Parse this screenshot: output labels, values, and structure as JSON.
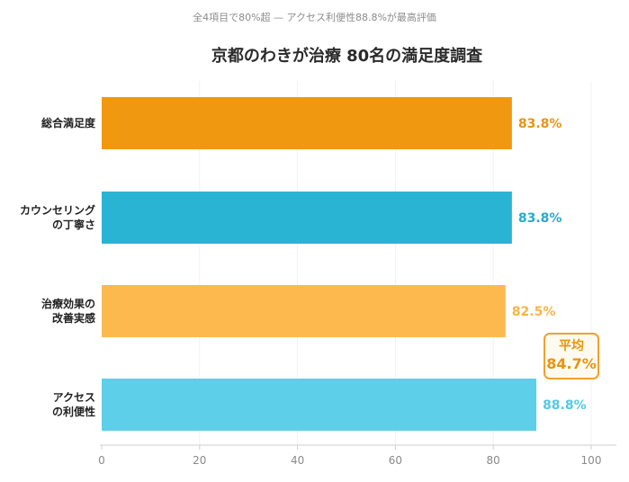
{
  "chart_data": {
    "type": "bar",
    "orientation": "horizontal",
    "subtitle": "全4項目で80%超 — アクセス利便性88.8%が最高評価",
    "title": "京都のわきが治療 80名の満足度調査",
    "categories": [
      [
        "総合満足度"
      ],
      [
        "カウンセリング",
        "の丁寧さ"
      ],
      [
        "治療効果の",
        "改善実感"
      ],
      [
        "アクセス",
        "の利便性"
      ]
    ],
    "values": [
      83.8,
      83.8,
      82.5,
      88.8
    ],
    "value_labels": [
      "83.8%",
      "83.8%",
      "82.5%",
      "88.8%"
    ],
    "colors": [
      "#f0980f",
      "#29b4d4",
      "#fdb94e",
      "#5dcfe8"
    ],
    "value_label_colors": [
      "#e89414",
      "#27aac8",
      "#fbb447",
      "#55c8e2"
    ],
    "xlim": [
      0,
      100
    ],
    "xticks": [
      0,
      20,
      40,
      60,
      80,
      100
    ],
    "grid": true,
    "annotation": {
      "title": "平均",
      "value": "84.7%"
    }
  }
}
